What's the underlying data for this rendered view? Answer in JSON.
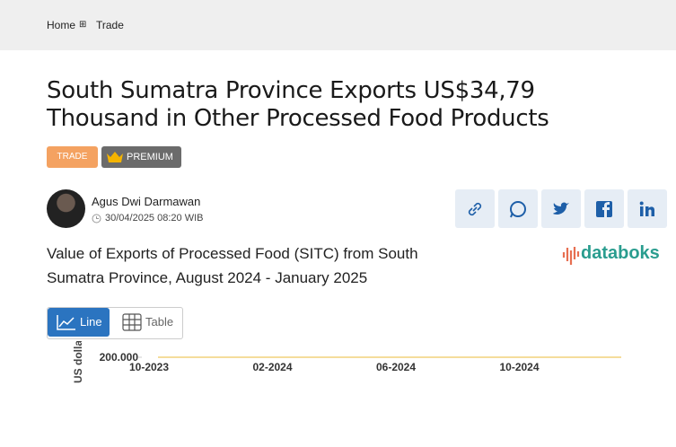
{
  "breadcrumb": [
    "Home",
    "Trade"
  ],
  "title": "South Sumatra Province Exports US$34,79 Thousand in Other Processed Food Products",
  "tags": [
    "TRADE",
    "PREMIUM"
  ],
  "author": {
    "name": "Agus Dwi Darmawan",
    "date": "30/04/2025 08:20 WIB"
  },
  "chart_heading": "Value of Exports of Processed Food (SITC) from South Sumatra Province, August 2024 - January 2025",
  "brand": "databoks",
  "view_toggle": [
    "Line",
    "Table"
  ],
  "chart_data": {
    "type": "line",
    "y_label": "US dolla",
    "yticks": [
      {
        "value": 200000,
        "label": "200.000"
      }
    ],
    "xticks": [
      "10-2023",
      "02-2024",
      "06-2024",
      "10-2024"
    ]
  }
}
